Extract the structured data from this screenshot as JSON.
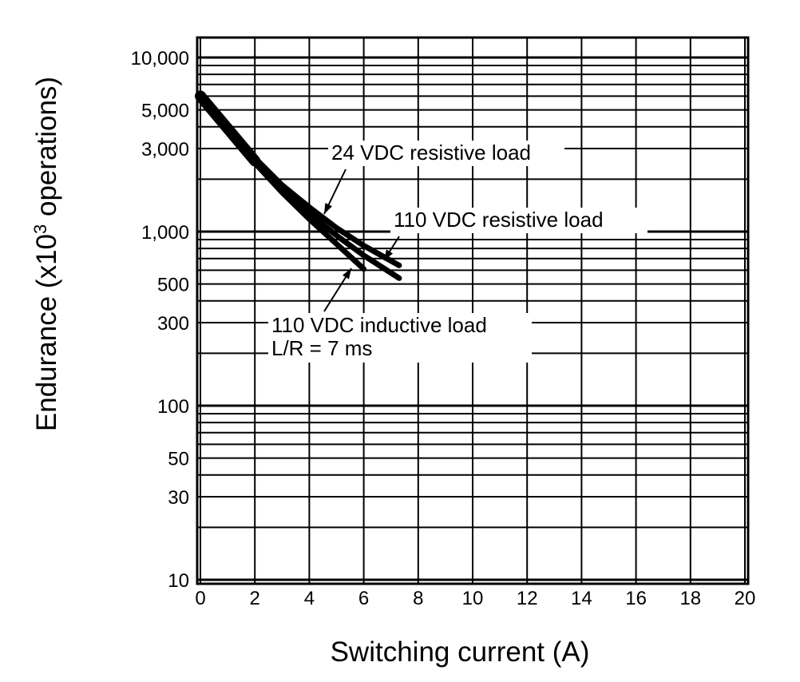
{
  "chart_data": {
    "type": "line",
    "xlabel": "Switching current (A)",
    "ylabel_main": "Endurance (x10",
    "ylabel_sup": "3",
    "ylabel_tail": " operations)",
    "xlim": [
      0,
      20
    ],
    "ylim": [
      10,
      13000
    ],
    "y_scale": "log",
    "grid": true,
    "x_ticks": [
      0,
      2,
      4,
      6,
      8,
      10,
      12,
      14,
      16,
      18,
      20
    ],
    "y_ticks": [
      {
        "value": 10000,
        "label": "10,000"
      },
      {
        "value": 5000,
        "label": "5,000"
      },
      {
        "value": 3000,
        "label": "3,000"
      },
      {
        "value": 1000,
        "label": "1,000"
      },
      {
        "value": 500,
        "label": "500"
      },
      {
        "value": 300,
        "label": "300"
      },
      {
        "value": 100,
        "label": "100"
      },
      {
        "value": 50,
        "label": "50"
      },
      {
        "value": 30,
        "label": "30"
      },
      {
        "value": 10,
        "label": "10"
      }
    ],
    "series": [
      {
        "name": "24 VDC resistive load",
        "x": [
          0,
          1,
          2,
          3,
          4,
          5,
          6,
          7.3
        ],
        "y": [
          6000,
          3900,
          2650,
          1850,
          1380,
          1050,
          830,
          640
        ]
      },
      {
        "name": "110 VDC resistive load",
        "x": [
          0,
          1,
          2,
          3,
          4,
          5,
          6,
          7.3
        ],
        "y": [
          6000,
          3800,
          2550,
          1750,
          1270,
          950,
          730,
          540
        ]
      },
      {
        "name": "110 VDC inductive load L/R = 7 ms",
        "x": [
          0,
          1,
          2,
          3,
          4,
          5,
          6
        ],
        "y": [
          6000,
          3750,
          2480,
          1680,
          1180,
          850,
          610
        ]
      }
    ],
    "annotations": [
      {
        "text": "24 VDC resistive load"
      },
      {
        "text": "110 VDC resistive load"
      },
      {
        "text": "110 VDC inductive load",
        "text2": "L/R = 7 ms"
      }
    ]
  }
}
